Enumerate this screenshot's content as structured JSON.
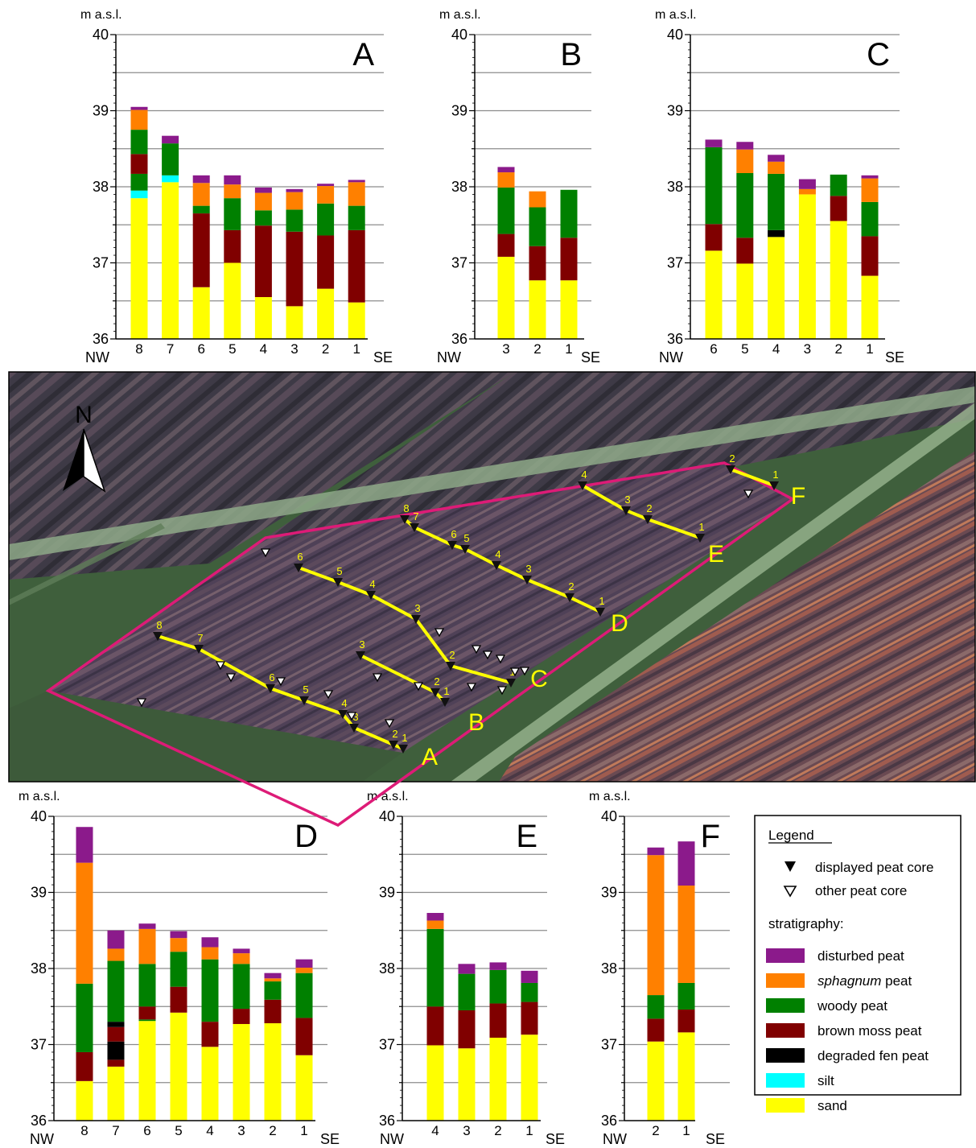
{
  "layer_colors": {
    "sand": "#ffff00",
    "silt": "#00ffff",
    "degraded": "#000000",
    "brown_moss": "#800000",
    "woody": "#008000",
    "sphagnum": "#ff8000",
    "disturbed": "#8b1a8b"
  },
  "chart_data": [
    {
      "type": "bar",
      "stacked": true,
      "panel": "A",
      "ylabel": "m a.s.l.",
      "ylim": [
        36,
        40
      ],
      "yticks": [
        "36",
        "37",
        "38",
        "39",
        "40"
      ],
      "left_label": "NW",
      "right_label": "SE",
      "categories": [
        "8",
        "7",
        "6",
        "5",
        "4",
        "3",
        "2",
        "1"
      ],
      "cores": [
        {
          "top": 39.05,
          "layers": [
            [
              "sand",
              37.85
            ],
            [
              "silt",
              37.95
            ],
            [
              "woody",
              38.17
            ],
            [
              "brown_moss",
              38.43
            ],
            [
              "woody",
              38.75
            ],
            [
              "sphagnum",
              39.01
            ],
            [
              "disturbed",
              39.05
            ]
          ]
        },
        {
          "top": 38.67,
          "layers": [
            [
              "sand",
              38.06
            ],
            [
              "silt",
              38.15
            ],
            [
              "woody",
              38.57
            ],
            [
              "disturbed",
              38.67
            ]
          ]
        },
        {
          "top": 38.15,
          "layers": [
            [
              "sand",
              36.68
            ],
            [
              "brown_moss",
              37.65
            ],
            [
              "woody",
              37.75
            ],
            [
              "sphagnum",
              38.05
            ],
            [
              "disturbed",
              38.15
            ]
          ]
        },
        {
          "top": 38.15,
          "layers": [
            [
              "sand",
              37.0
            ],
            [
              "brown_moss",
              37.43
            ],
            [
              "woody",
              37.85
            ],
            [
              "sphagnum",
              38.03
            ],
            [
              "disturbed",
              38.15
            ]
          ]
        },
        {
          "top": 37.99,
          "layers": [
            [
              "sand",
              36.55
            ],
            [
              "brown_moss",
              37.49
            ],
            [
              "woody",
              37.69
            ],
            [
              "sphagnum",
              37.92
            ],
            [
              "disturbed",
              37.99
            ]
          ]
        },
        {
          "top": 37.97,
          "layers": [
            [
              "sand",
              36.43
            ],
            [
              "brown_moss",
              37.41
            ],
            [
              "woody",
              37.7
            ],
            [
              "sphagnum",
              37.93
            ],
            [
              "disturbed",
              37.97
            ]
          ]
        },
        {
          "top": 38.04,
          "layers": [
            [
              "sand",
              36.66
            ],
            [
              "brown_moss",
              37.36
            ],
            [
              "woody",
              37.78
            ],
            [
              "sphagnum",
              38.01
            ],
            [
              "disturbed",
              38.04
            ]
          ]
        },
        {
          "top": 38.09,
          "layers": [
            [
              "sand",
              36.48
            ],
            [
              "brown_moss",
              37.43
            ],
            [
              "woody",
              37.75
            ],
            [
              "sphagnum",
              38.06
            ],
            [
              "disturbed",
              38.09
            ]
          ]
        }
      ]
    },
    {
      "type": "bar",
      "stacked": true,
      "panel": "B",
      "ylabel": "m a.s.l.",
      "ylim": [
        36,
        40
      ],
      "yticks": [
        "36",
        "37",
        "38",
        "39",
        "40"
      ],
      "left_label": "NW",
      "right_label": "SE",
      "categories": [
        "3",
        "2",
        "1"
      ],
      "cores": [
        {
          "top": 38.26,
          "layers": [
            [
              "sand",
              37.08
            ],
            [
              "brown_moss",
              37.38
            ],
            [
              "woody",
              37.99
            ],
            [
              "sphagnum",
              38.19
            ],
            [
              "disturbed",
              38.26
            ]
          ]
        },
        {
          "top": 37.94,
          "layers": [
            [
              "sand",
              36.77
            ],
            [
              "brown_moss",
              37.22
            ],
            [
              "woody",
              37.73
            ],
            [
              "sphagnum",
              37.94
            ]
          ]
        },
        {
          "top": 37.96,
          "layers": [
            [
              "sand",
              36.77
            ],
            [
              "brown_moss",
              37.33
            ],
            [
              "woody",
              37.96
            ]
          ]
        }
      ]
    },
    {
      "type": "bar",
      "stacked": true,
      "panel": "C",
      "ylabel": "m a.s.l.",
      "ylim": [
        36,
        40
      ],
      "yticks": [
        "36",
        "37",
        "38",
        "39",
        "40"
      ],
      "left_label": "NW",
      "right_label": "SE",
      "categories": [
        "6",
        "5",
        "4",
        "3",
        "2",
        "1"
      ],
      "cores": [
        {
          "top": 38.62,
          "layers": [
            [
              "sand",
              37.16
            ],
            [
              "brown_moss",
              37.51
            ],
            [
              "woody",
              38.52
            ],
            [
              "disturbed",
              38.62
            ]
          ]
        },
        {
          "top": 38.59,
          "layers": [
            [
              "sand",
              36.99
            ],
            [
              "brown_moss",
              37.33
            ],
            [
              "woody",
              38.18
            ],
            [
              "sphagnum",
              38.49
            ],
            [
              "disturbed",
              38.59
            ]
          ]
        },
        {
          "top": 38.42,
          "layers": [
            [
              "sand",
              37.34
            ],
            [
              "degraded",
              37.43
            ],
            [
              "woody",
              38.17
            ],
            [
              "sphagnum",
              38.33
            ],
            [
              "disturbed",
              38.42
            ]
          ]
        },
        {
          "top": 38.1,
          "layers": [
            [
              "sand",
              37.9
            ],
            [
              "sphagnum",
              37.97
            ],
            [
              "disturbed",
              38.1
            ]
          ]
        },
        {
          "top": 38.16,
          "layers": [
            [
              "sand",
              37.55
            ],
            [
              "brown_moss",
              37.88
            ],
            [
              "woody",
              38.16
            ]
          ]
        },
        {
          "top": 38.15,
          "layers": [
            [
              "sand",
              36.83
            ],
            [
              "brown_moss",
              37.35
            ],
            [
              "woody",
              37.8
            ],
            [
              "sphagnum",
              38.11
            ],
            [
              "disturbed",
              38.15
            ]
          ]
        }
      ]
    },
    {
      "type": "bar",
      "stacked": true,
      "panel": "D",
      "ylabel": "m a.s.l.",
      "ylim": [
        36,
        40
      ],
      "yticks": [
        "36",
        "37",
        "38",
        "39",
        "40"
      ],
      "left_label": "NW",
      "right_label": "SE",
      "categories": [
        "8",
        "7",
        "6",
        "5",
        "4",
        "3",
        "2",
        "1"
      ],
      "cores": [
        {
          "top": 39.86,
          "layers": [
            [
              "sand",
              36.52
            ],
            [
              "brown_moss",
              36.9
            ],
            [
              "woody",
              37.8
            ],
            [
              "sphagnum",
              39.39
            ],
            [
              "disturbed",
              39.86
            ]
          ]
        },
        {
          "top": 38.5,
          "layers": [
            [
              "sand",
              36.71
            ],
            [
              "brown_moss",
              36.8
            ],
            [
              "degraded",
              37.04
            ],
            [
              "brown_moss",
              37.23
            ],
            [
              "degraded",
              37.3
            ],
            [
              "woody",
              38.1
            ],
            [
              "sphagnum",
              38.26
            ],
            [
              "disturbed",
              38.5
            ]
          ]
        },
        {
          "top": 38.59,
          "layers": [
            [
              "sand",
              37.31
            ],
            [
              "woody",
              37.33
            ],
            [
              "brown_moss",
              37.5
            ],
            [
              "woody",
              38.06
            ],
            [
              "sphagnum",
              38.52
            ],
            [
              "disturbed",
              38.59
            ]
          ]
        },
        {
          "top": 38.49,
          "layers": [
            [
              "sand",
              37.42
            ],
            [
              "brown_moss",
              37.76
            ],
            [
              "woody",
              38.22
            ],
            [
              "sphagnum",
              38.4
            ],
            [
              "disturbed",
              38.49
            ]
          ]
        },
        {
          "top": 38.41,
          "layers": [
            [
              "sand",
              36.97
            ],
            [
              "brown_moss",
              37.3
            ],
            [
              "woody",
              38.12
            ],
            [
              "sphagnum",
              38.28
            ],
            [
              "disturbed",
              38.41
            ]
          ]
        },
        {
          "top": 38.26,
          "layers": [
            [
              "sand",
              37.27
            ],
            [
              "brown_moss",
              37.47
            ],
            [
              "woody",
              38.06
            ],
            [
              "sphagnum",
              38.2
            ],
            [
              "disturbed",
              38.26
            ]
          ]
        },
        {
          "top": 37.94,
          "layers": [
            [
              "sand",
              37.28
            ],
            [
              "brown_moss",
              37.59
            ],
            [
              "woody",
              37.83
            ],
            [
              "sphagnum",
              37.87
            ],
            [
              "disturbed",
              37.94
            ]
          ]
        },
        {
          "top": 38.12,
          "layers": [
            [
              "sand",
              36.86
            ],
            [
              "brown_moss",
              37.35
            ],
            [
              "woody",
              37.94
            ],
            [
              "sphagnum",
              38.01
            ],
            [
              "disturbed",
              38.12
            ]
          ]
        }
      ]
    },
    {
      "type": "bar",
      "stacked": true,
      "panel": "E",
      "ylabel": "m a.s.l.",
      "ylim": [
        36,
        40
      ],
      "yticks": [
        "36",
        "37",
        "38",
        "39",
        "40"
      ],
      "left_label": "NW",
      "right_label": "SE",
      "categories": [
        "4",
        "3",
        "2",
        "1"
      ],
      "cores": [
        {
          "top": 38.73,
          "layers": [
            [
              "sand",
              36.99
            ],
            [
              "brown_moss",
              37.5
            ],
            [
              "woody",
              38.52
            ],
            [
              "sphagnum",
              38.63
            ],
            [
              "disturbed",
              38.73
            ]
          ]
        },
        {
          "top": 38.06,
          "layers": [
            [
              "sand",
              36.95
            ],
            [
              "brown_moss",
              37.45
            ],
            [
              "woody",
              37.93
            ],
            [
              "disturbed",
              38.06
            ]
          ]
        },
        {
          "top": 38.08,
          "layers": [
            [
              "sand",
              37.09
            ],
            [
              "brown_moss",
              37.54
            ],
            [
              "woody",
              37.98
            ],
            [
              "disturbed",
              38.08
            ]
          ]
        },
        {
          "top": 37.97,
          "layers": [
            [
              "sand",
              37.13
            ],
            [
              "brown_moss",
              37.56
            ],
            [
              "woody",
              37.81
            ],
            [
              "disturbed",
              37.97
            ]
          ]
        }
      ]
    },
    {
      "type": "bar",
      "stacked": true,
      "panel": "F",
      "ylabel": "m a.s.l.",
      "ylim": [
        36,
        40
      ],
      "yticks": [
        "36",
        "37",
        "38",
        "39",
        "40"
      ],
      "left_label": "NW",
      "right_label": "SE",
      "categories": [
        "2",
        "1"
      ],
      "cores": [
        {
          "top": 39.59,
          "layers": [
            [
              "sand",
              37.04
            ],
            [
              "brown_moss",
              37.34
            ],
            [
              "woody",
              37.65
            ],
            [
              "sphagnum",
              39.49
            ],
            [
              "disturbed",
              39.59
            ]
          ]
        },
        {
          "top": 39.67,
          "layers": [
            [
              "sand",
              37.16
            ],
            [
              "brown_moss",
              37.46
            ],
            [
              "woody",
              37.81
            ],
            [
              "sphagnum",
              39.09
            ],
            [
              "disturbed",
              39.67
            ]
          ]
        }
      ]
    }
  ],
  "map": {
    "north_label": "N",
    "transect_labels": [
      "A",
      "B",
      "C",
      "D",
      "E",
      "F"
    ]
  },
  "legend": {
    "title": "Legend",
    "displayed_core": "displayed peat core",
    "other_core": "other peat core",
    "stratigraphy_title": "stratigraphy:",
    "items": [
      {
        "key": "disturbed",
        "label": "disturbed peat"
      },
      {
        "key": "sphagnum",
        "label": "sphagnum",
        "suffix": " peat",
        "italic": true
      },
      {
        "key": "woody",
        "label": "woody peat"
      },
      {
        "key": "brown_moss",
        "label": "brown moss peat"
      },
      {
        "key": "degraded",
        "label": "degraded fen peat"
      },
      {
        "key": "silt",
        "label": "silt"
      },
      {
        "key": "sand",
        "label": "sand"
      }
    ]
  }
}
